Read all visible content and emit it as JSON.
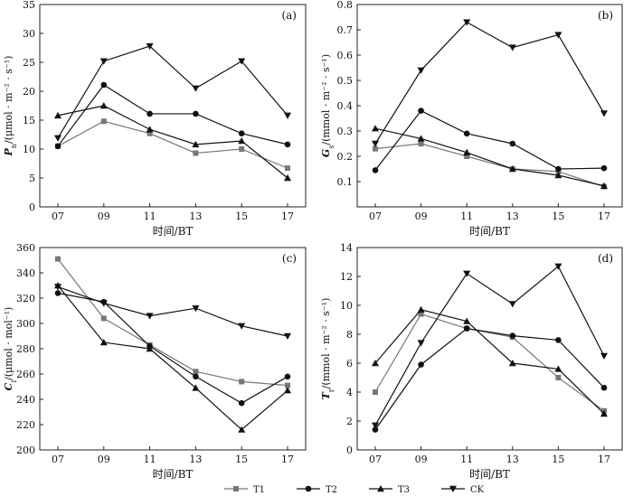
{
  "colors": {
    "T1": "#777777",
    "T2": "#111111",
    "T3": "#111111",
    "CK": "#111111",
    "axis": "#222222"
  },
  "legend": [
    {
      "label": "T1",
      "marker": "square",
      "color": "#777777"
    },
    {
      "label": "T2",
      "marker": "circle",
      "color": "#111111"
    },
    {
      "label": "T3",
      "marker": "triangle-up",
      "color": "#111111"
    },
    {
      "label": "CK",
      "marker": "triangle-down",
      "color": "#111111"
    }
  ],
  "chart_data": [
    {
      "type": "line",
      "panel": "(a)",
      "x": [
        "07",
        "09",
        "11",
        "13",
        "15",
        "17"
      ],
      "xlabel": "时间/BT",
      "ylabel": {
        "sym": "P",
        "sub": "n",
        "unit": "/(μmol · m⁻² · s⁻¹)"
      },
      "ylim": [
        0,
        35
      ],
      "yticks": [
        0,
        5,
        10,
        15,
        20,
        25,
        30,
        35
      ],
      "ytick_labels": [
        "0",
        "5",
        "10",
        "15",
        "20",
        "25",
        "30",
        "35"
      ],
      "series": [
        {
          "name": "T1",
          "values": [
            10.5,
            14.8,
            12.7,
            9.3,
            10.0,
            6.7
          ]
        },
        {
          "name": "T2",
          "values": [
            10.5,
            21.1,
            16.1,
            16.1,
            12.7,
            10.8
          ]
        },
        {
          "name": "T3",
          "values": [
            15.8,
            17.5,
            13.4,
            10.8,
            11.4,
            5.0
          ]
        },
        {
          "name": "CK",
          "values": [
            11.9,
            25.2,
            27.8,
            20.5,
            25.2,
            15.8
          ]
        }
      ]
    },
    {
      "type": "line",
      "panel": "(b)",
      "x": [
        "07",
        "09",
        "11",
        "13",
        "15",
        "17"
      ],
      "xlabel": "时间/BT",
      "ylabel": {
        "sym": "G",
        "sub": "s",
        "unit": "/(mmol · m⁻² · s⁻¹)"
      },
      "ylim": [
        0,
        0.8
      ],
      "yticks": [
        0.1,
        0.2,
        0.3,
        0.4,
        0.5,
        0.6,
        0.7,
        0.8
      ],
      "ytick_labels": [
        "0.1",
        "0.2",
        "0.3",
        "0.4",
        "0.5",
        "0.6",
        "0.7",
        "0.8"
      ],
      "series": [
        {
          "name": "T1",
          "values": [
            0.23,
            0.25,
            0.2,
            0.15,
            0.14,
            0.08
          ]
        },
        {
          "name": "T2",
          "values": [
            0.145,
            0.38,
            0.29,
            0.25,
            0.15,
            0.153
          ]
        },
        {
          "name": "T3",
          "values": [
            0.31,
            0.27,
            0.215,
            0.15,
            0.125,
            0.083
          ]
        },
        {
          "name": "CK",
          "values": [
            0.25,
            0.54,
            0.73,
            0.63,
            0.68,
            0.37
          ]
        }
      ]
    },
    {
      "type": "line",
      "panel": "(c)",
      "x": [
        "07",
        "09",
        "11",
        "13",
        "15",
        "17"
      ],
      "xlabel": "时间/BT",
      "ylabel": {
        "sym": "C",
        "sub": "i",
        "unit": "/(μmol · mol⁻¹)"
      },
      "ylim": [
        200,
        360
      ],
      "yticks": [
        200,
        220,
        240,
        260,
        280,
        300,
        320,
        340,
        360
      ],
      "ytick_labels": [
        "200",
        "220",
        "240",
        "260",
        "280",
        "300",
        "320",
        "340",
        "360"
      ],
      "series": [
        {
          "name": "T1",
          "values": [
            351,
            304,
            283,
            262,
            254,
            251
          ]
        },
        {
          "name": "T2",
          "values": [
            324,
            317,
            282,
            258,
            237,
            258
          ]
        },
        {
          "name": "T3",
          "values": [
            330,
            285,
            280,
            249,
            216,
            247
          ]
        },
        {
          "name": "CK",
          "values": [
            329,
            316,
            306,
            312,
            298,
            290
          ]
        }
      ]
    },
    {
      "type": "line",
      "panel": "(d)",
      "x": [
        "07",
        "09",
        "11",
        "13",
        "15",
        "17"
      ],
      "xlabel": "时间/BT",
      "ylabel": {
        "sym": "T",
        "sub": "r",
        "unit": "/(mmol · m⁻² · s⁻¹)"
      },
      "ylim": [
        0,
        14
      ],
      "yticks": [
        0,
        2,
        4,
        6,
        8,
        10,
        12,
        14
      ],
      "ytick_labels": [
        "0",
        "2",
        "4",
        "6",
        "8",
        "10",
        "12",
        "14"
      ],
      "series": [
        {
          "name": "T1",
          "values": [
            4.0,
            9.4,
            8.4,
            7.8,
            5.0,
            2.7
          ]
        },
        {
          "name": "T2",
          "values": [
            1.4,
            5.9,
            8.4,
            7.9,
            7.6,
            4.3
          ]
        },
        {
          "name": "T3",
          "values": [
            6.0,
            9.7,
            8.9,
            6.0,
            5.6,
            2.5
          ]
        },
        {
          "name": "CK",
          "values": [
            1.7,
            7.4,
            12.2,
            10.1,
            12.7,
            6.5
          ]
        }
      ]
    }
  ]
}
